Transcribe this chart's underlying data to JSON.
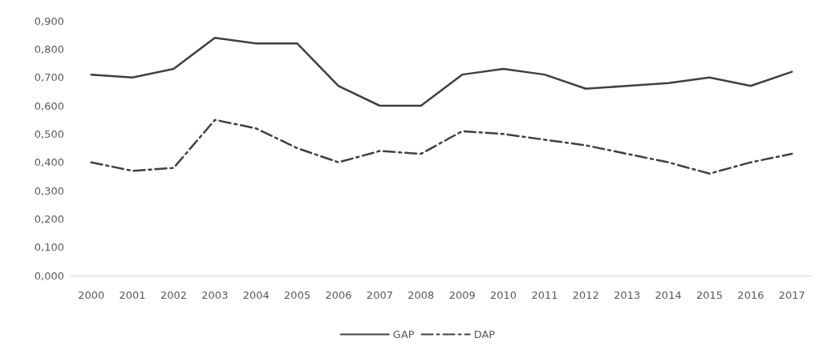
{
  "chart_data": {
    "type": "line",
    "categories": [
      "2000",
      "2001",
      "2002",
      "2003",
      "2004",
      "2005",
      "2006",
      "2007",
      "2008",
      "2009",
      "2010",
      "2011",
      "2012",
      "2013",
      "2014",
      "2015",
      "2016",
      "2017"
    ],
    "series": [
      {
        "name": "GAP",
        "color": "#404040",
        "line_style": "solid",
        "values": [
          0.71,
          0.7,
          0.73,
          0.84,
          0.82,
          0.82,
          0.67,
          0.6,
          0.6,
          0.71,
          0.73,
          0.71,
          0.66,
          0.67,
          0.68,
          0.7,
          0.67,
          0.72
        ]
      },
      {
        "name": "DAP",
        "color": "#404040",
        "line_style": "dashed",
        "values": [
          0.4,
          0.37,
          0.38,
          0.55,
          0.52,
          0.45,
          0.4,
          0.44,
          0.43,
          0.51,
          0.5,
          0.48,
          0.46,
          0.43,
          0.4,
          0.36,
          0.4,
          0.43
        ]
      }
    ],
    "ylim": [
      0,
      0.9
    ],
    "yticks": [
      {
        "value": 0,
        "label": "0,000"
      },
      {
        "value": 0.1,
        "label": "0,100"
      },
      {
        "value": 0.2,
        "label": "0,200"
      },
      {
        "value": 0.3,
        "label": "0,300"
      },
      {
        "value": 0.4,
        "label": "0,400"
      },
      {
        "value": 0.5,
        "label": "0,500"
      },
      {
        "value": 0.6,
        "label": "0,600"
      },
      {
        "value": 0.7,
        "label": "0,700"
      },
      {
        "value": 0.8,
        "label": "0,800"
      },
      {
        "value": 0.9,
        "label": "0,900"
      }
    ],
    "grid": false,
    "legend": "bottom",
    "marker": "none"
  }
}
